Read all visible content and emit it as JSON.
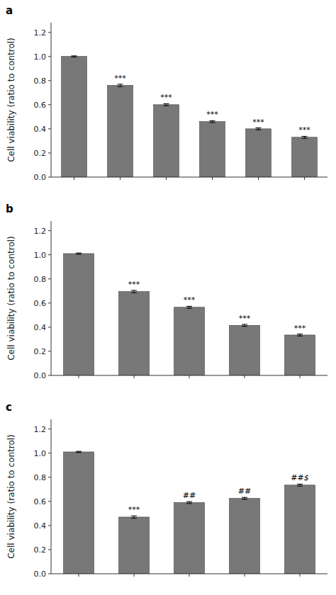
{
  "chart_data": [
    {
      "type": "bar",
      "title": "a",
      "categories": [
        null,
        null,
        null,
        null,
        null,
        null
      ],
      "values": [
        1.0,
        0.76,
        0.6,
        0.46,
        0.4,
        0.33
      ],
      "errors": [
        0.005,
        0.01,
        0.008,
        0.008,
        0.008,
        0.008
      ],
      "annotations": [
        null,
        "***",
        "***",
        "***",
        "***",
        "***"
      ],
      "color": "#787878",
      "y_label": "Cell viability (ratio to control)",
      "ylim": [
        0.0,
        1.28
      ],
      "yticks": [
        {
          "value": 0.0,
          "label": "0.0"
        },
        0.2,
        0.4,
        0.6,
        0.8,
        {
          "value": 1.0,
          "label": "1.0"
        },
        1.2
      ],
      "tick_labels": "y"
    },
    {
      "type": "bar",
      "title": "b",
      "categories": [
        null,
        null,
        null,
        null,
        null
      ],
      "values": [
        1.01,
        0.695,
        0.565,
        0.415,
        0.335
      ],
      "errors": [
        0.005,
        0.01,
        0.008,
        0.008,
        0.008
      ],
      "annotations": [
        null,
        "***",
        "***",
        "***",
        "***"
      ],
      "color": "#787878",
      "y_label": "Cell viability (ratio to control)",
      "ylim": [
        0.0,
        1.28
      ],
      "yticks": [
        {
          "value": 0.0,
          "label": "0.0"
        },
        0.2,
        0.4,
        0.6,
        0.8,
        {
          "value": 1.0,
          "label": "1.0"
        },
        1.2
      ],
      "tick_labels": "y"
    },
    {
      "type": "bar",
      "title": "c",
      "categories": [
        null,
        null,
        null,
        null,
        null
      ],
      "values": [
        1.01,
        0.47,
        0.59,
        0.625,
        0.735
      ],
      "errors": [
        0.005,
        0.01,
        0.008,
        0.008,
        0.008
      ],
      "annotations": [
        null,
        "***",
        "##",
        "##",
        "##$"
      ],
      "color": "#787878",
      "y_label": "Cell viability (ratio to control)",
      "ylim": [
        0.0,
        1.28
      ],
      "yticks": [
        {
          "value": 0.0,
          "label": "0.0"
        },
        0.2,
        0.4,
        0.6,
        0.8,
        {
          "value": 1.0,
          "label": "1.0"
        },
        1.2
      ],
      "tick_labels": "y"
    }
  ]
}
